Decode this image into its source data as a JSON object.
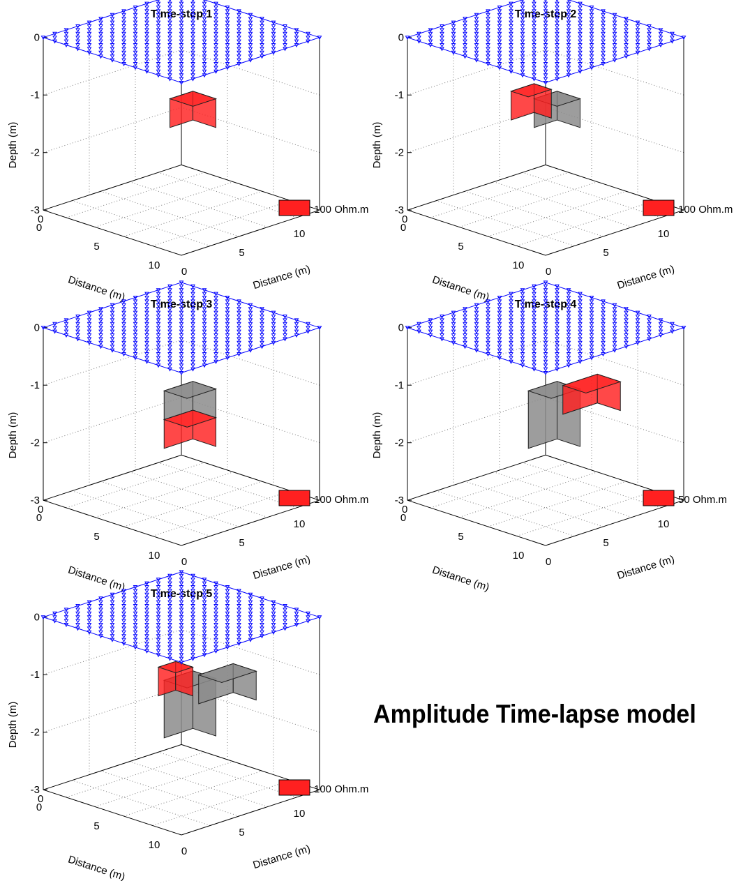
{
  "figure_title": "Amplitude Time-lapse model",
  "axes": {
    "depth_label": "Depth (m)",
    "distance_label": "Distance (m)",
    "depth_ticks": [
      "0",
      "-1",
      "-2",
      "-3"
    ],
    "x_ticks": [
      "0",
      "5",
      "10"
    ],
    "y_ticks": [
      "0",
      "5",
      "10"
    ]
  },
  "colors": {
    "electrode": "#0000ff",
    "anomaly_red": "#ff2020",
    "previous_anomaly": "#8c8c8c",
    "grid": "#808080"
  },
  "panels": [
    {
      "title": "Time-step 1",
      "legend": "100 Ohm.m",
      "blocks": [
        {
          "kind": "current",
          "x": [
            4,
            6
          ],
          "y": [
            5,
            7
          ],
          "z": [
            -1.0,
            -1.5
          ]
        }
      ]
    },
    {
      "title": "Time-step 2",
      "legend": "100 Ohm.m",
      "blocks": [
        {
          "kind": "previous",
          "x": [
            4,
            6
          ],
          "y": [
            5,
            7
          ],
          "z": [
            -1.0,
            -1.5
          ]
        },
        {
          "kind": "current",
          "x": [
            6.5,
            8
          ],
          "y": [
            5,
            7
          ],
          "z": [
            -1.0,
            -1.5
          ]
        }
      ]
    },
    {
      "title": "Time-step 3",
      "legend": "100 Ohm.m",
      "blocks": [
        {
          "kind": "previous",
          "x": [
            4,
            6
          ],
          "y": [
            4.5,
            7
          ],
          "z": [
            -1.0,
            -1.5
          ]
        },
        {
          "kind": "current",
          "x": [
            4,
            6
          ],
          "y": [
            4.5,
            7
          ],
          "z": [
            -1.5,
            -2.0
          ]
        }
      ]
    },
    {
      "title": "Time-step 4",
      "legend": "50 Ohm.m",
      "blocks": [
        {
          "kind": "previous",
          "x": [
            4,
            6
          ],
          "y": [
            4.5,
            7
          ],
          "z": [
            -1.0,
            -2.0
          ]
        },
        {
          "kind": "current",
          "x": [
            5.5,
            7.5
          ],
          "y": [
            9,
            12
          ],
          "z": [
            -1.3,
            -1.8
          ]
        }
      ]
    },
    {
      "title": "Time-step 5",
      "legend": "100 Ohm.m",
      "blocks": [
        {
          "kind": "previous",
          "x": [
            4,
            6
          ],
          "y": [
            4.5,
            7
          ],
          "z": [
            -1.0,
            -2.0
          ]
        },
        {
          "kind": "previous",
          "x": [
            5.5,
            7.5
          ],
          "y": [
            9,
            12
          ],
          "z": [
            -1.3,
            -1.8
          ]
        },
        {
          "kind": "current",
          "x": [
            6.5,
            8
          ],
          "y": [
            6,
            7.5
          ],
          "z": [
            -1.0,
            -1.5
          ]
        }
      ]
    }
  ]
}
